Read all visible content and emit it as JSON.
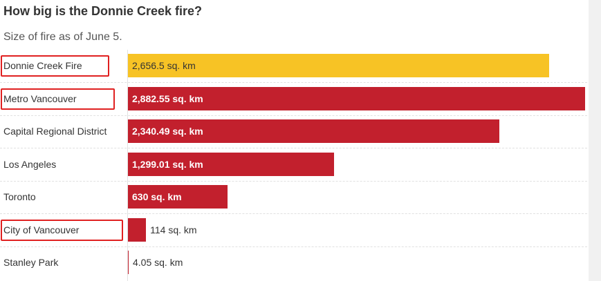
{
  "chart_data": {
    "type": "bar",
    "orientation": "horizontal",
    "title": "How big is the Donnie Creek fire?",
    "subtitle": "Size of fire as of June 5.",
    "categories": [
      "Donnie Creek Fire",
      "Metro Vancouver",
      "Capital Regional District",
      "Los Angeles",
      "Toronto",
      "City of Vancouver",
      "Stanley Park"
    ],
    "values": [
      2656.5,
      2882.55,
      2340.49,
      1299.01,
      630,
      114,
      4.05
    ],
    "value_labels": [
      "2,656.5 sq. km",
      "2,882.55 sq. km",
      "2,340.49 sq. km",
      "1,299.01 sq. km",
      "630 sq. km",
      "114 sq. km",
      "4.05 sq. km"
    ],
    "colors": [
      "#f7c325",
      "#c2202d",
      "#c2202d",
      "#c2202d",
      "#c2202d",
      "#c2202d",
      "#c2202d"
    ],
    "highlighted_categories": [
      "Donnie Creek Fire",
      "Metro Vancouver",
      "City of Vancouver"
    ],
    "highlight_color": "#e02020",
    "xlim": [
      0,
      2882.55
    ]
  }
}
